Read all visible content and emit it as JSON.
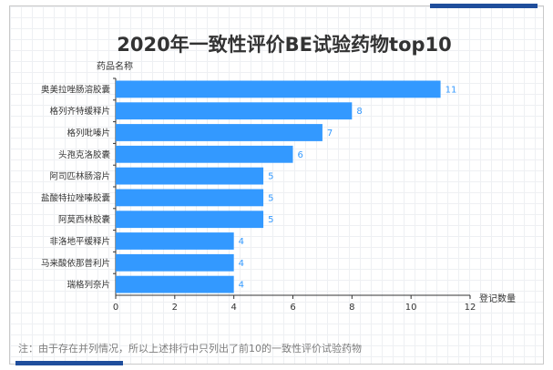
{
  "theme": {
    "bar_color": "#3399ff",
    "label_color": "#3399ff",
    "accent_color": "#1f4e9c",
    "axis_color": "#333333",
    "text_color": "#333333"
  },
  "chart_data": {
    "type": "bar",
    "orientation": "horizontal",
    "title": "2020年一致性评价BE试验药物top10",
    "ylabel": "药品名称",
    "xlabel": "登记数量",
    "categories": [
      "奥美拉唑肠溶胶囊",
      "格列齐特缓释片",
      "格列吡嗪片",
      "头孢克洛胶囊",
      "阿司匹林肠溶片",
      "盐酸特拉唑嗪胶囊",
      "阿莫西林胶囊",
      "非洛地平缓释片",
      "马来酸依那普利片",
      "瑞格列奈片"
    ],
    "values": [
      11,
      8,
      7,
      6,
      5,
      5,
      5,
      4,
      4,
      4
    ],
    "xlim": [
      0,
      12
    ],
    "xticks": [
      0,
      2,
      4,
      6,
      8,
      10,
      12
    ],
    "grid": false,
    "data_labels": true
  },
  "footnote": "注：由于存在并列情况，所以上述排行中只列出了前10的一致性评价试验药物"
}
